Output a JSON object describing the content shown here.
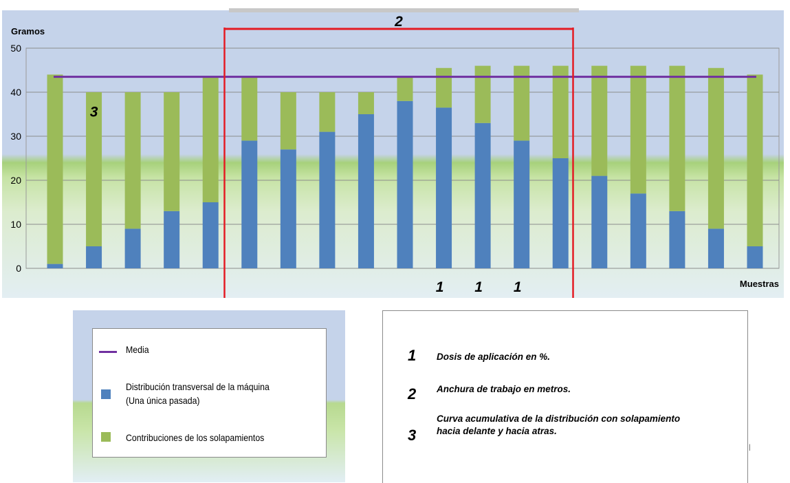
{
  "chart_data": {
    "type": "bar",
    "stacked": true,
    "ylabel": "Gramos",
    "xlabel": "Muestras",
    "ylim": [
      0,
      50
    ],
    "yticks": [
      0,
      10,
      20,
      30,
      40,
      50
    ],
    "grid": true,
    "categories": [
      "",
      "",
      "",
      "",
      "",
      "",
      "",
      "",
      "",
      "",
      "",
      "",
      "",
      "",
      "",
      "",
      "",
      "",
      ""
    ],
    "series": [
      {
        "name": "Distribución transversal de la máquina (Una única pasada)",
        "color": "#4f81bd",
        "values": [
          1,
          5,
          9,
          13,
          15,
          29,
          27,
          31,
          35,
          38,
          36.5,
          33,
          29,
          25,
          21,
          17,
          13,
          9,
          5
        ]
      },
      {
        "name": "Contribuciones de los solapamientos",
        "color": "#9bbb59",
        "values": [
          43,
          35,
          31,
          27,
          28.5,
          14.5,
          13,
          9,
          5,
          5.5,
          9,
          13,
          17,
          21,
          25,
          29,
          33,
          36.5,
          39
        ]
      }
    ],
    "mean": {
      "name": "Media",
      "value": 43.5,
      "color": "#7030a0"
    },
    "annotations": [
      {
        "text": "1",
        "category_index": 10
      },
      {
        "text": "1",
        "category_index": 11
      },
      {
        "text": "1",
        "category_index": 12
      },
      {
        "text": "2",
        "from_index": 5,
        "to_index": 13
      },
      {
        "text": "3",
        "category_index": 1,
        "y": 36
      }
    ],
    "legend": "below-left"
  },
  "legend": {
    "items": [
      {
        "label": "Media"
      },
      {
        "label_line1": "Distribución transversal de la máquina",
        "label_line2": "(Una única pasada)"
      },
      {
        "label": "Contribuciones  de los solapamientos"
      }
    ]
  },
  "notes": [
    {
      "num": "1",
      "text": "Dosis de aplicación en %."
    },
    {
      "num": "2",
      "text": "Anchura de trabajo en metros."
    },
    {
      "num": "3",
      "line1": "Curva acumulativa de la distribución con solapamiento",
      "line2": "hacia delante y hacia atras."
    }
  ],
  "colors": {
    "plot_top": "#c5d3ea",
    "plot_bottom": "#e3eef3",
    "frame_red": "#e41b23",
    "mean_line": "#7030a0"
  }
}
